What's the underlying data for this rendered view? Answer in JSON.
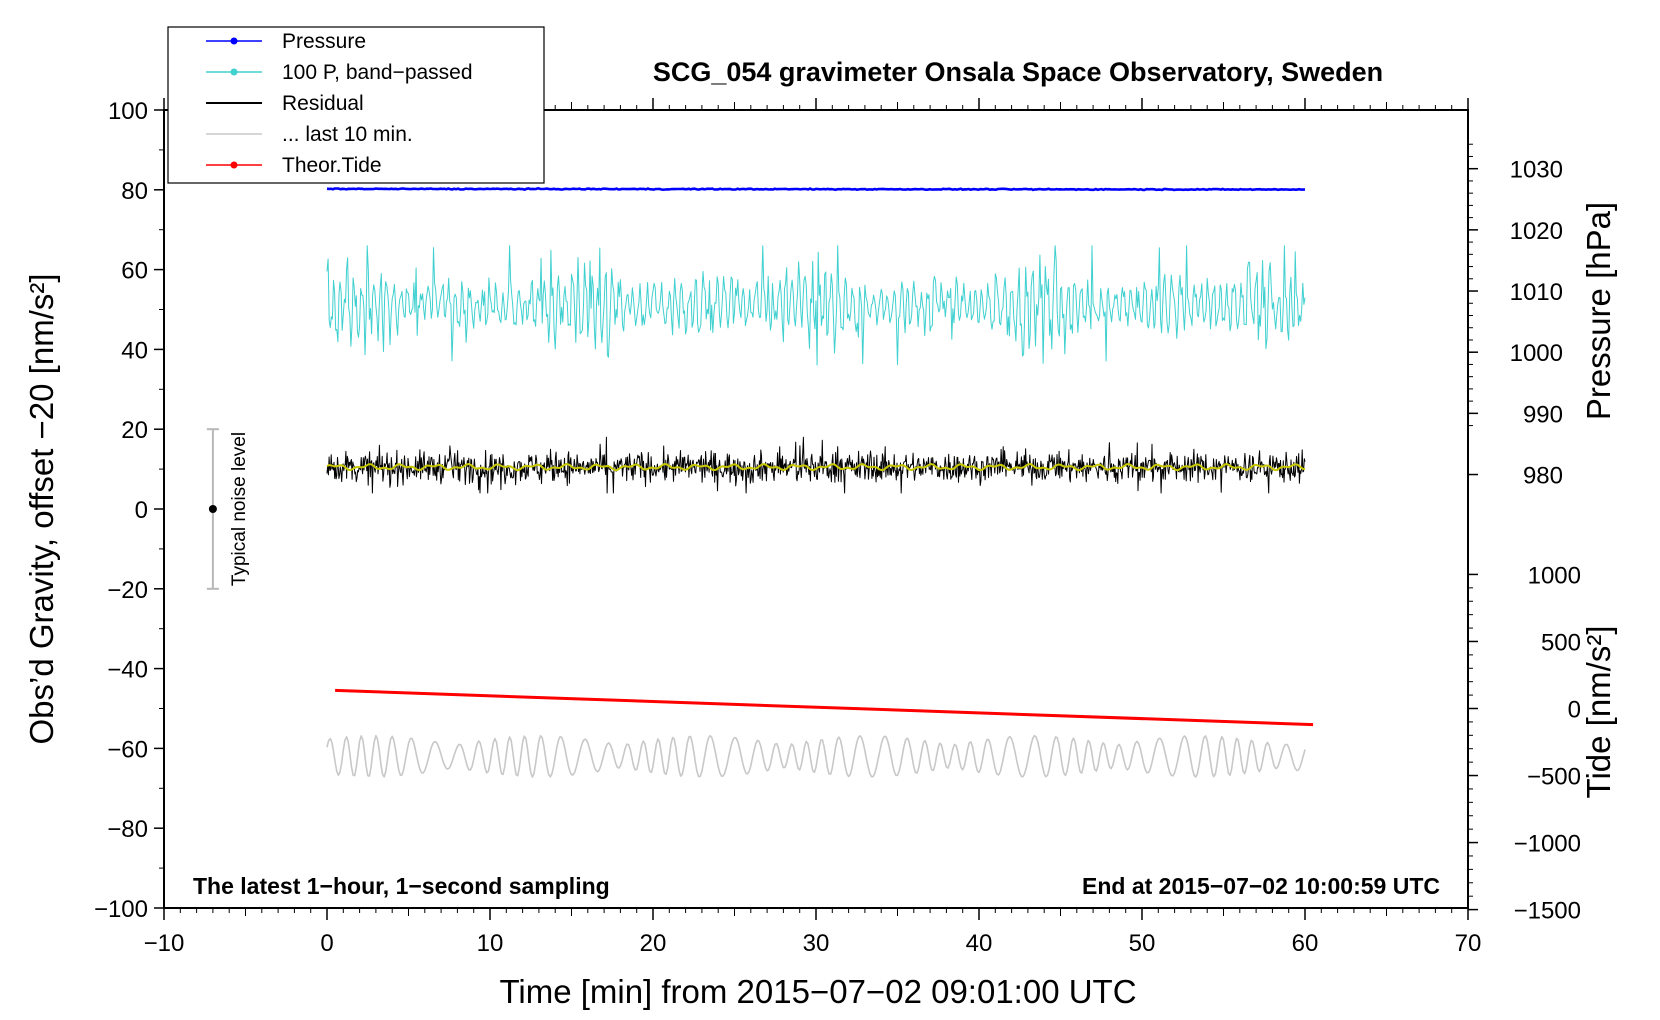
{
  "chart_data": {
    "type": "line",
    "title": "SCG_054 gravimeter Onsala Space Observatory, Sweden",
    "xlabel": "Time [min] from 2015−07−02 09:01:00 UTC",
    "ylabel_left": "Obs’d Gravity, offset −20 [nm/s²]",
    "ylabel_pressure": "Pressure [hPa]",
    "ylabel_tide": "Tide [nm/s²]",
    "xlim": [
      -10,
      70
    ],
    "ylim_left": [
      -100,
      100
    ],
    "x_ticks": [
      {
        "value": -10,
        "label": "−10"
      },
      {
        "value": 0,
        "label": "0"
      },
      {
        "value": 10,
        "label": "10"
      },
      {
        "value": 20,
        "label": "20"
      },
      {
        "value": 30,
        "label": "30"
      },
      {
        "value": 40,
        "label": "40"
      },
      {
        "value": 50,
        "label": "50"
      },
      {
        "value": 60,
        "label": "60"
      },
      {
        "value": 70,
        "label": "70"
      }
    ],
    "y_ticks_left": [
      {
        "value": 100,
        "label": "100"
      },
      {
        "value": 80,
        "label": "80"
      },
      {
        "value": 60,
        "label": "60"
      },
      {
        "value": 40,
        "label": "40"
      },
      {
        "value": 20,
        "label": "20"
      },
      {
        "value": 0,
        "label": "0"
      },
      {
        "value": -20,
        "label": "−20"
      },
      {
        "value": -40,
        "label": "−40"
      },
      {
        "value": -60,
        "label": "−60"
      },
      {
        "value": -80,
        "label": "−80"
      },
      {
        "value": -100,
        "label": "−100"
      }
    ],
    "pressure_axis": {
      "ticks": [
        {
          "value": 1030,
          "label": "1030"
        },
        {
          "value": 1020,
          "label": "1020"
        },
        {
          "value": 1010,
          "label": "1010"
        },
        {
          "value": 1000,
          "label": "1000"
        },
        {
          "value": 990,
          "label": "990"
        },
        {
          "value": 980,
          "label": "980"
        }
      ],
      "left_equivalent_per_hPa": 1.533,
      "left_at_1000hPa": 39.3
    },
    "tide_axis": {
      "ticks": [
        {
          "value": 1000,
          "label": "1000"
        },
        {
          "value": 500,
          "label": "500"
        },
        {
          "value": 0,
          "label": "0"
        },
        {
          "value": -500,
          "label": "−500"
        },
        {
          "value": -1000,
          "label": "−1000"
        },
        {
          "value": -1500,
          "label": "−1500"
        }
      ],
      "left_equivalent_per_unit": 0.0336,
      "left_at_0": -50
    },
    "series": [
      {
        "name": "Pressure",
        "color": "#0000ff",
        "x_start": 0,
        "x_end": 60,
        "start_value": 1026.7,
        "end_value": 1026.6,
        "noise": 0.2,
        "axis": "pressure"
      },
      {
        "name": "100 P, band−passed",
        "color": "#40d0d0",
        "x_start": 0,
        "x_end": 60,
        "center": 51,
        "typical_amplitude": 6,
        "min": 27,
        "max": 66,
        "axis": "left"
      },
      {
        "name": "Residual",
        "color": "#000000",
        "x_start": 0,
        "x_end": 60,
        "center": 10.5,
        "typical_amplitude": 3,
        "min": 4,
        "max": 18,
        "axis": "left"
      },
      {
        "name": "... last 10 min.",
        "color": "#c8c8c8",
        "x_start": 0,
        "x_end": 60,
        "center": -62,
        "typical_amplitude": 4,
        "min": -69,
        "max": -55,
        "axis": "left"
      },
      {
        "name": "Theor.Tide",
        "color": "#ff0000",
        "x_start": 0.5,
        "x_end": 60.5,
        "start_value": 135,
        "end_value": -120,
        "axis": "tide"
      },
      {
        "name": "smoothed residual",
        "color": "#c8c800",
        "x_start": 0,
        "x_end": 60,
        "center": 10.5,
        "typical_amplitude": 0.8,
        "axis": "left",
        "in_legend": false
      }
    ],
    "noise_bar": {
      "x": -7,
      "center": 0,
      "low": -20,
      "high": 20,
      "label": "Typical noise level"
    },
    "annotations": {
      "bottom_left": "The latest 1−hour, 1−second sampling",
      "bottom_right": "End at 2015−07−02 10:00:59 UTC"
    },
    "legend_position": "top-left"
  }
}
